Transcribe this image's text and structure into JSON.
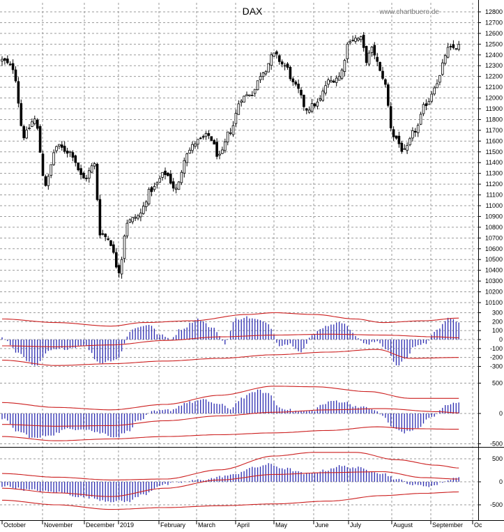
{
  "chart_data": {
    "type": "candlestick",
    "title": "DAX",
    "watermark": "www.chartbuero.de",
    "months": [
      "October",
      "November",
      "December",
      "2019",
      "February",
      "March",
      "April",
      "May",
      "June",
      "July",
      "August",
      "September",
      "Oc"
    ],
    "colors": {
      "candle": "#000000",
      "osc_bars": "#2b2bb0",
      "bands": "#cc1f1f",
      "grid": "#9a9a9a"
    },
    "panels": [
      {
        "name": "price",
        "ylim": [
          10100,
          12850
        ],
        "ticks": [
          "12800",
          "12700",
          "12600",
          "12500",
          "12400",
          "12300",
          "12200",
          "12100",
          "12000",
          "11900",
          "11800",
          "11700",
          "11600",
          "11500",
          "11400",
          "11300",
          "11200",
          "11100",
          "11000",
          "10900",
          "10800",
          "10700",
          "10600",
          "10500",
          "10400",
          "10300",
          "10200",
          "10100"
        ],
        "close_anchors": [
          [
            0,
            12350
          ],
          [
            4,
            12280
          ],
          [
            8,
            11650
          ],
          [
            12,
            11800
          ],
          [
            16,
            11200
          ],
          [
            20,
            11550
          ],
          [
            25,
            11500
          ],
          [
            30,
            11250
          ],
          [
            34,
            11380
          ],
          [
            36,
            10750
          ],
          [
            39,
            10700
          ],
          [
            43,
            10400
          ],
          [
            46,
            10850
          ],
          [
            50,
            10900
          ],
          [
            55,
            11150
          ],
          [
            60,
            11300
          ],
          [
            64,
            11150
          ],
          [
            68,
            11500
          ],
          [
            72,
            11600
          ],
          [
            76,
            11650
          ],
          [
            80,
            11450
          ],
          [
            84,
            11700
          ],
          [
            88,
            12000
          ],
          [
            92,
            12050
          ],
          [
            96,
            12250
          ],
          [
            100,
            12400
          ],
          [
            104,
            12300
          ],
          [
            108,
            12100
          ],
          [
            112,
            11900
          ],
          [
            116,
            11950
          ],
          [
            120,
            12150
          ],
          [
            124,
            12200
          ],
          [
            128,
            12550
          ],
          [
            132,
            12550
          ],
          [
            134,
            12350
          ],
          [
            136,
            12450
          ],
          [
            140,
            12200
          ],
          [
            144,
            11650
          ],
          [
            148,
            11500
          ],
          [
            152,
            11700
          ],
          [
            156,
            11950
          ],
          [
            160,
            12150
          ],
          [
            164,
            12450
          ],
          [
            168,
            12480
          ]
        ]
      },
      {
        "name": "osc1",
        "ylim": [
          -380,
          380
        ],
        "ticks": [
          "300",
          "200",
          "100",
          "0",
          "-100",
          "-200",
          "-300"
        ],
        "bar_anchors": [
          [
            0,
            20
          ],
          [
            6,
            -150
          ],
          [
            12,
            -300
          ],
          [
            18,
            -120
          ],
          [
            24,
            -100
          ],
          [
            30,
            -60
          ],
          [
            36,
            -260
          ],
          [
            42,
            -220
          ],
          [
            48,
            120
          ],
          [
            54,
            170
          ],
          [
            58,
            50
          ],
          [
            62,
            10
          ],
          [
            66,
            120
          ],
          [
            72,
            230
          ],
          [
            78,
            120
          ],
          [
            82,
            -40
          ],
          [
            86,
            230
          ],
          [
            90,
            250
          ],
          [
            94,
            220
          ],
          [
            98,
            170
          ],
          [
            102,
            -60
          ],
          [
            106,
            -50
          ],
          [
            110,
            -130
          ],
          [
            114,
            40
          ],
          [
            118,
            140
          ],
          [
            122,
            180
          ],
          [
            126,
            190
          ],
          [
            130,
            40
          ],
          [
            134,
            -60
          ],
          [
            138,
            -20
          ],
          [
            142,
            -120
          ],
          [
            145,
            -300
          ],
          [
            148,
            -230
          ],
          [
            152,
            -70
          ],
          [
            156,
            -40
          ],
          [
            160,
            120
          ],
          [
            164,
            230
          ],
          [
            168,
            200
          ]
        ],
        "band_upper": [
          [
            0,
            230
          ],
          [
            20,
            190
          ],
          [
            40,
            150
          ],
          [
            52,
            190
          ],
          [
            70,
            210
          ],
          [
            90,
            280
          ],
          [
            100,
            300
          ],
          [
            115,
            280
          ],
          [
            130,
            230
          ],
          [
            140,
            190
          ],
          [
            155,
            210
          ],
          [
            168,
            240
          ]
        ],
        "band_mid": [
          [
            0,
            -70
          ],
          [
            20,
            -80
          ],
          [
            40,
            -60
          ],
          [
            60,
            -10
          ],
          [
            80,
            30
          ],
          [
            100,
            50
          ],
          [
            120,
            60
          ],
          [
            140,
            50
          ],
          [
            160,
            30
          ],
          [
            168,
            20
          ]
        ],
        "band_lower": [
          [
            0,
            -230
          ],
          [
            20,
            -290
          ],
          [
            40,
            -270
          ],
          [
            60,
            -240
          ],
          [
            80,
            -210
          ],
          [
            100,
            -170
          ],
          [
            120,
            -140
          ],
          [
            138,
            -110
          ],
          [
            150,
            -210
          ],
          [
            168,
            -200
          ]
        ]
      },
      {
        "name": "osc2",
        "ylim": [
          -550,
          550
        ],
        "ticks": [
          "500",
          "0",
          "-500"
        ],
        "bar_anchors": [
          [
            0,
            -80
          ],
          [
            6,
            -300
          ],
          [
            12,
            -410
          ],
          [
            18,
            -350
          ],
          [
            24,
            -260
          ],
          [
            30,
            -250
          ],
          [
            36,
            -320
          ],
          [
            42,
            -390
          ],
          [
            46,
            -300
          ],
          [
            50,
            -120
          ],
          [
            56,
            30
          ],
          [
            62,
            60
          ],
          [
            68,
            180
          ],
          [
            74,
            220
          ],
          [
            80,
            150
          ],
          [
            84,
            80
          ],
          [
            88,
            250
          ],
          [
            94,
            380
          ],
          [
            98,
            330
          ],
          [
            102,
            100
          ],
          [
            108,
            40
          ],
          [
            114,
            40
          ],
          [
            118,
            150
          ],
          [
            122,
            210
          ],
          [
            126,
            190
          ],
          [
            130,
            120
          ],
          [
            136,
            80
          ],
          [
            140,
            -40
          ],
          [
            144,
            -250
          ],
          [
            148,
            -310
          ],
          [
            152,
            -260
          ],
          [
            158,
            -60
          ],
          [
            164,
            140
          ],
          [
            168,
            190
          ]
        ],
        "band_upper": [
          [
            0,
            180
          ],
          [
            20,
            100
          ],
          [
            40,
            60
          ],
          [
            60,
            150
          ],
          [
            80,
            300
          ],
          [
            100,
            450
          ],
          [
            115,
            440
          ],
          [
            135,
            360
          ],
          [
            150,
            250
          ],
          [
            168,
            250
          ]
        ],
        "band_mid": [
          [
            0,
            -180
          ],
          [
            20,
            -210
          ],
          [
            40,
            -200
          ],
          [
            60,
            -120
          ],
          [
            80,
            -40
          ],
          [
            100,
            20
          ],
          [
            120,
            60
          ],
          [
            140,
            80
          ],
          [
            160,
            30
          ],
          [
            168,
            10
          ]
        ],
        "band_lower": [
          [
            0,
            -380
          ],
          [
            20,
            -450
          ],
          [
            40,
            -420
          ],
          [
            60,
            -380
          ],
          [
            80,
            -350
          ],
          [
            100,
            -320
          ],
          [
            120,
            -280
          ],
          [
            138,
            -220
          ],
          [
            150,
            -250
          ],
          [
            168,
            -260
          ]
        ]
      },
      {
        "name": "osc3",
        "ylim": [
          -700,
          700
        ],
        "ticks": [
          "500",
          "0",
          "-500"
        ],
        "bar_anchors": [
          [
            0,
            -90
          ],
          [
            10,
            -180
          ],
          [
            20,
            -230
          ],
          [
            30,
            -330
          ],
          [
            40,
            -420
          ],
          [
            46,
            -430
          ],
          [
            52,
            -280
          ],
          [
            58,
            -80
          ],
          [
            66,
            -10
          ],
          [
            74,
            50
          ],
          [
            84,
            140
          ],
          [
            92,
            300
          ],
          [
            98,
            380
          ],
          [
            104,
            290
          ],
          [
            112,
            170
          ],
          [
            118,
            240
          ],
          [
            124,
            340
          ],
          [
            130,
            310
          ],
          [
            136,
            240
          ],
          [
            140,
            180
          ],
          [
            146,
            40
          ],
          [
            152,
            -80
          ],
          [
            158,
            -90
          ],
          [
            164,
            30
          ],
          [
            168,
            120
          ]
        ],
        "band_upper": [
          [
            0,
            180
          ],
          [
            20,
            100
          ],
          [
            40,
            40
          ],
          [
            60,
            60
          ],
          [
            80,
            260
          ],
          [
            100,
            560
          ],
          [
            115,
            640
          ],
          [
            130,
            640
          ],
          [
            145,
            480
          ],
          [
            160,
            360
          ],
          [
            168,
            300
          ]
        ],
        "band_mid": [
          [
            0,
            -140
          ],
          [
            20,
            -240
          ],
          [
            40,
            -320
          ],
          [
            60,
            -140
          ],
          [
            80,
            40
          ],
          [
            100,
            160
          ],
          [
            120,
            200
          ],
          [
            140,
            220
          ],
          [
            155,
            90
          ],
          [
            168,
            60
          ]
        ],
        "band_lower": [
          [
            0,
            -400
          ],
          [
            20,
            -500
          ],
          [
            40,
            -600
          ],
          [
            60,
            -560
          ],
          [
            80,
            -520
          ],
          [
            100,
            -480
          ],
          [
            120,
            -420
          ],
          [
            140,
            -300
          ],
          [
            155,
            -250
          ],
          [
            168,
            -220
          ]
        ]
      }
    ]
  }
}
